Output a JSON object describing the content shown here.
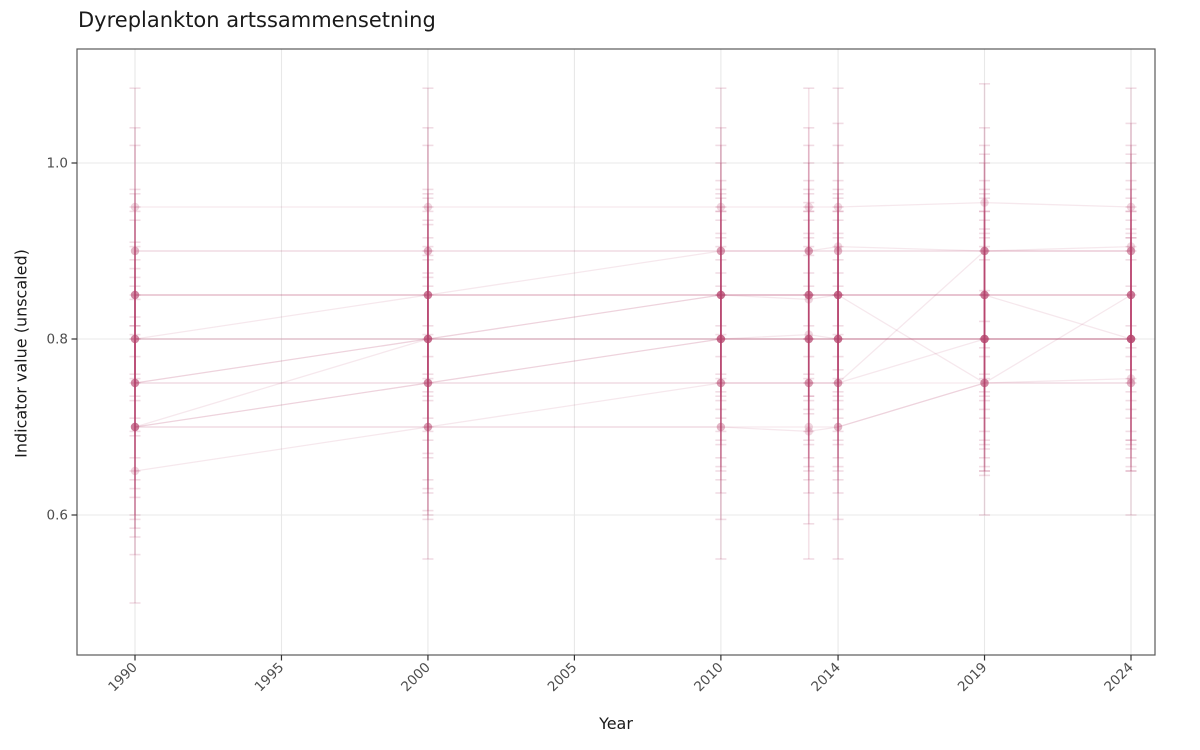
{
  "title": "Dyreplankton artssammensetning",
  "chart_data": {
    "type": "line",
    "title": "Dyreplankton artssammensetning",
    "xlabel": "Year",
    "ylabel": "Indicator value (unscaled)",
    "x_breaks": [
      1990,
      1995,
      2000,
      2005,
      2010,
      2014,
      2019,
      2024
    ],
    "x_tick_labels": [
      "1990",
      "1995",
      "2000",
      "2005",
      "2010",
      "2014",
      "2019",
      "2024"
    ],
    "y_breaks": [
      0.6,
      0.8,
      1.0
    ],
    "y_tick_labels": [
      "0.6",
      "0.8",
      "1.0"
    ],
    "xlim": [
      1988.1,
      2025.8
    ],
    "ylim": [
      0.44,
      1.13
    ],
    "grid": "major-only",
    "legend": "none",
    "marker": "circle-with-errorbar",
    "x": [
      1990,
      2000,
      2010,
      2013,
      2014,
      2019,
      2024
    ],
    "series": [
      {
        "values": [
          0.95,
          0.95,
          0.95,
          0.95,
          0.95,
          0.955,
          0.95
        ],
        "err": 0.135
      },
      {
        "values": [
          0.9,
          0.9,
          0.9,
          0.9,
          0.905,
          0.9,
          0.905
        ],
        "err": 0.14
      },
      {
        "values": [
          0.85,
          0.85,
          0.9,
          0.9,
          0.9,
          0.9,
          0.9
        ],
        "err": 0.1
      },
      {
        "values": [
          0.9,
          0.9,
          0.9,
          0.9,
          0.9,
          0.9,
          0.9
        ],
        "err": 0.12
      },
      {
        "values": [
          0.85,
          0.85,
          0.85,
          0.85,
          0.85,
          0.85,
          0.85
        ],
        "err": 0.12
      },
      {
        "values": [
          0.85,
          0.85,
          0.85,
          0.85,
          0.85,
          0.85,
          0.85
        ],
        "err": 0.095
      },
      {
        "values": [
          0.8,
          0.85,
          0.85,
          0.845,
          0.85,
          0.85,
          0.85
        ],
        "err": 0.11
      },
      {
        "values": [
          0.75,
          0.8,
          0.85,
          0.85,
          0.85,
          0.85,
          0.85
        ],
        "err": 0.13
      },
      {
        "values": [
          0.75,
          0.8,
          0.85,
          0.85,
          0.85,
          0.75,
          0.85
        ],
        "err": 0.1
      },
      {
        "values": [
          0.85,
          0.85,
          0.85,
          0.85,
          0.85,
          0.85,
          0.8
        ],
        "err": 0.115
      },
      {
        "values": [
          0.8,
          0.8,
          0.8,
          0.8,
          0.8,
          0.8,
          0.8
        ],
        "err": 0.105
      },
      {
        "values": [
          0.8,
          0.8,
          0.8,
          0.8,
          0.8,
          0.8,
          0.8
        ],
        "err": 0.135
      },
      {
        "values": [
          0.8,
          0.8,
          0.8,
          0.805,
          0.8,
          0.8,
          0.8
        ],
        "err": 0.09
      },
      {
        "values": [
          0.75,
          0.75,
          0.8,
          0.8,
          0.8,
          0.8,
          0.8
        ],
        "err": 0.12
      },
      {
        "values": [
          0.7,
          0.75,
          0.8,
          0.8,
          0.8,
          0.8,
          0.8
        ],
        "err": 0.145
      },
      {
        "values": [
          0.7,
          0.8,
          0.8,
          0.8,
          0.8,
          0.8,
          0.8
        ],
        "err": 0.115
      },
      {
        "values": [
          0.7,
          0.75,
          0.75,
          0.75,
          0.75,
          0.8,
          0.8
        ],
        "err": 0.125
      },
      {
        "values": [
          0.7,
          0.7,
          0.75,
          0.75,
          0.75,
          0.75,
          0.75
        ],
        "err": 0.1
      },
      {
        "values": [
          0.75,
          0.75,
          0.75,
          0.75,
          0.75,
          0.9,
          0.9
        ],
        "err": 0.11
      },
      {
        "values": [
          0.7,
          0.7,
          0.7,
          0.695,
          0.7,
          0.75,
          0.755
        ],
        "err": 0.105
      },
      {
        "values": [
          0.65,
          0.7,
          0.7,
          0.7,
          0.7,
          0.75,
          0.75
        ],
        "err": 0.15
      }
    ],
    "style": {
      "color": "#b8436e",
      "line_alpha": 0.12,
      "point_alpha": 0.22,
      "errorbar_alpha": 0.15,
      "cap_alpha": 0.18,
      "grid_color": "#e8e8e8",
      "border_color": "#595959",
      "tick_color": "#333333",
      "tick_label_color": "#4d4d4d"
    }
  }
}
